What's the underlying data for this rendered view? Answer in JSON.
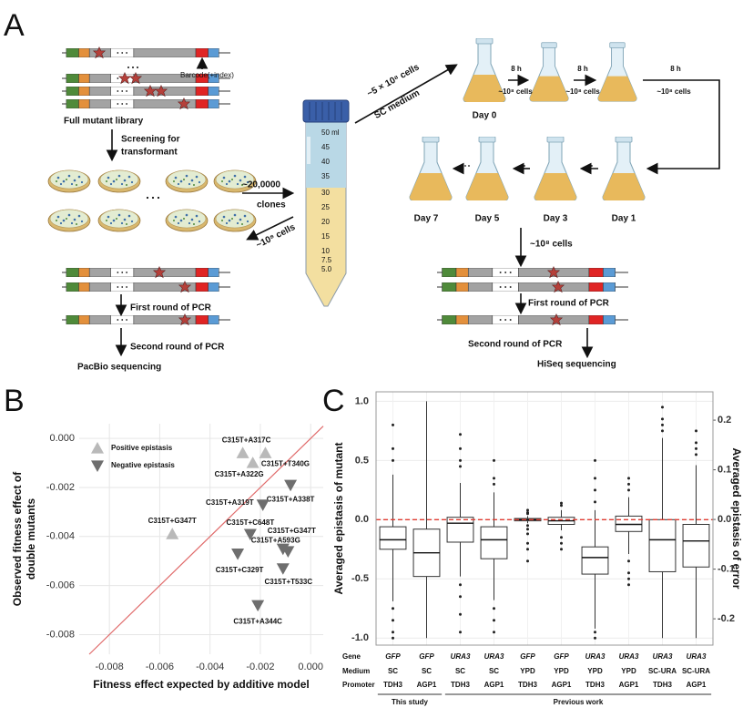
{
  "panel_labels": {
    "a": "A",
    "b": "B",
    "c": "C"
  },
  "diagram": {
    "barcode_label": "Barcode(+index)",
    "library_label": "Full mutant library",
    "screening_label": [
      "Screening for",
      "transformant"
    ],
    "clones_count": "~20,0000",
    "clones_label": "clones",
    "back_cells": "~10⁸ cells",
    "tube_scale": [
      "50 ml",
      "45",
      "40",
      "35",
      "30",
      "25",
      "20",
      "15",
      "10",
      "7.5",
      "5.0"
    ],
    "inoculum_cells": "~5 × 10⁸ cells",
    "medium": "SC medium",
    "growth_steps": [
      {
        "time": "8 h",
        "cells": "~10⁸ cells"
      },
      {
        "time": "8 h",
        "cells": "~10⁸ cells"
      },
      {
        "time": "8 h",
        "cells": "~10⁸ cells"
      }
    ],
    "days": [
      "Day 0",
      "Day 1",
      "Day 3",
      "Day 5",
      "Day 7"
    ],
    "harvest_cells": "~10⁸ cells",
    "pacbio": {
      "first": "First round of PCR",
      "second": "Second round of PCR",
      "method": "PacBio sequencing"
    },
    "hiseq": {
      "first": "First round of PCR",
      "second": "Second round of PCR",
      "method": "HiSeq sequencing"
    }
  },
  "chart_data": [
    {
      "type": "scatter",
      "x_label": "Fitness effect expected by additive model",
      "y_label": [
        "Observed fitness effect of",
        "double mutants"
      ],
      "xlim": [
        -0.0092,
        0.0005
      ],
      "ylim": [
        -0.0088,
        0.0006
      ],
      "xticks": [
        -0.008,
        -0.006,
        -0.004,
        -0.002,
        {
          "value": 0,
          "label": "0.000"
        }
      ],
      "yticks": [
        -0.008,
        -0.006,
        -0.004,
        -0.002,
        {
          "value": 0,
          "label": "0.000"
        }
      ],
      "grid": true,
      "legend": "upper left",
      "diagonal": true,
      "diagonal_color": "#e06a6a",
      "series": [
        {
          "name": "Positive epistasis",
          "color": "#b9b9b9",
          "marker": "triangle-up",
          "x": [
            -0.0055,
            -0.0027,
            -0.0023,
            -0.0018
          ],
          "values": [
            -0.0039,
            -0.0006,
            -0.001,
            -0.0006
          ],
          "labels": [
            "C315T+G347T",
            "C315T+A317C",
            "C315T+A322G",
            "C315T+T340G"
          ]
        },
        {
          "name": "Negative epistasis",
          "color": "#6e6e6e",
          "marker": "triangle-down",
          "x": [
            -0.0008,
            -0.0019,
            -0.0024,
            -0.0009,
            -0.0011,
            -0.0029,
            -0.0011,
            -0.0021
          ],
          "values": [
            -0.0019,
            -0.0027,
            -0.0039,
            -0.0046,
            -0.0045,
            -0.0047,
            -0.0053,
            -0.0068
          ],
          "labels": [
            "C315T+A338T",
            "C315T+A319T",
            "C315T+C648T",
            "C315T+G347T",
            "C315T+A593G",
            "C315T+C329T",
            "C315T+T533C",
            "C315T+A344C"
          ]
        }
      ]
    },
    {
      "type": "box",
      "y_label": "Averaged epistasis of mutant",
      "y2_label": "Averaged epistasis of error",
      "ylim": [
        -1.06,
        1.08
      ],
      "yticks": [
        {
          "value": -1,
          "label": "-1.0"
        },
        -0.5,
        {
          "value": 0,
          "label": "0.0"
        },
        0.5,
        {
          "value": 1,
          "label": "1.0"
        }
      ],
      "y2lim": [
        -0.253,
        0.257
      ],
      "y2ticks": [
        -0.2,
        -0.1,
        {
          "value": 0,
          "label": "0.0"
        },
        0.1,
        0.2
      ],
      "grid": true,
      "reference_line_color": "#e03c31",
      "row_labels": [
        "Gene",
        "Medium",
        "Promoter"
      ],
      "groups": [
        {
          "label": "This study",
          "categories": [
            {
              "gene": "GFP",
              "medium": "SC",
              "promoter": "TDH3"
            },
            {
              "gene": "GFP",
              "medium": "SC",
              "promoter": "AGP1"
            }
          ]
        },
        {
          "label": "Previous work",
          "categories": [
            {
              "gene": "URA3",
              "medium": "SC",
              "promoter": "TDH3"
            },
            {
              "gene": "URA3",
              "medium": "SC",
              "promoter": "AGP1"
            },
            {
              "gene": "GFP",
              "medium": "YPD",
              "promoter": "TDH3"
            },
            {
              "gene": "GFP",
              "medium": "YPD",
              "promoter": "AGP1"
            },
            {
              "gene": "URA3",
              "medium": "YPD",
              "promoter": "TDH3"
            },
            {
              "gene": "URA3",
              "medium": "YPD",
              "promoter": "AGP1"
            },
            {
              "gene": "URA3",
              "medium": "SC-URA",
              "promoter": "TDH3"
            },
            {
              "gene": "URA3",
              "medium": "SC-URA",
              "promoter": "AGP1"
            }
          ]
        }
      ],
      "boxes": [
        {
          "low": -0.69,
          "q1": -0.25,
          "median": -0.17,
          "q3": -0.06,
          "high": 0.38,
          "outliers": [
            0.8,
            0.6,
            0.5,
            -0.75,
            -0.85,
            -0.95,
            -1.0
          ]
        },
        {
          "low": -1.0,
          "q1": -0.48,
          "median": -0.28,
          "q3": -0.08,
          "high": 1.0,
          "outliers": []
        },
        {
          "low": -0.48,
          "q1": -0.19,
          "median": -0.03,
          "q3": 0.02,
          "high": 0.31,
          "outliers": [
            0.72,
            0.6,
            0.5,
            0.45,
            -0.55,
            -0.65,
            -0.8,
            -0.95
          ]
        },
        {
          "low": -0.68,
          "q1": -0.33,
          "median": -0.17,
          "q3": -0.06,
          "high": 0.23,
          "outliers": [
            0.5,
            0.35,
            0.3,
            -0.75,
            -0.85,
            -0.95
          ]
        },
        {
          "low": -0.03,
          "q1": -0.01,
          "median": 0,
          "q3": 0.01,
          "high": 0.03,
          "outliers": [
            0.08,
            0.06,
            0.05,
            -0.05,
            -0.08,
            -0.12,
            -0.2,
            -0.25,
            -0.35
          ]
        },
        {
          "low": -0.09,
          "q1": -0.04,
          "median": -0.01,
          "q3": 0.02,
          "high": 0.08,
          "outliers": [
            0.14,
            0.12,
            -0.15,
            -0.2,
            -0.25
          ]
        },
        {
          "low": -0.92,
          "q1": -0.46,
          "median": -0.32,
          "q3": -0.23,
          "high": 0.08,
          "outliers": [
            0.5,
            0.35,
            0.25,
            0.15,
            -0.95,
            -1.0
          ]
        },
        {
          "low": -0.29,
          "q1": -0.1,
          "median": -0.04,
          "q3": 0.03,
          "high": 0.19,
          "outliers": [
            0.35,
            0.3,
            0.25,
            -0.35,
            -0.45,
            -0.5,
            -0.55
          ]
        },
        {
          "low": -1.0,
          "q1": -0.44,
          "median": -0.17,
          "q3": 0,
          "high": 0.69,
          "outliers": [
            0.95,
            0.85,
            0.8,
            0.75
          ]
        },
        {
          "low": -1.0,
          "q1": -0.4,
          "median": -0.18,
          "q3": -0.04,
          "high": 0.46,
          "outliers": [
            0.75,
            0.65,
            0.6,
            0.55
          ]
        }
      ]
    }
  ]
}
